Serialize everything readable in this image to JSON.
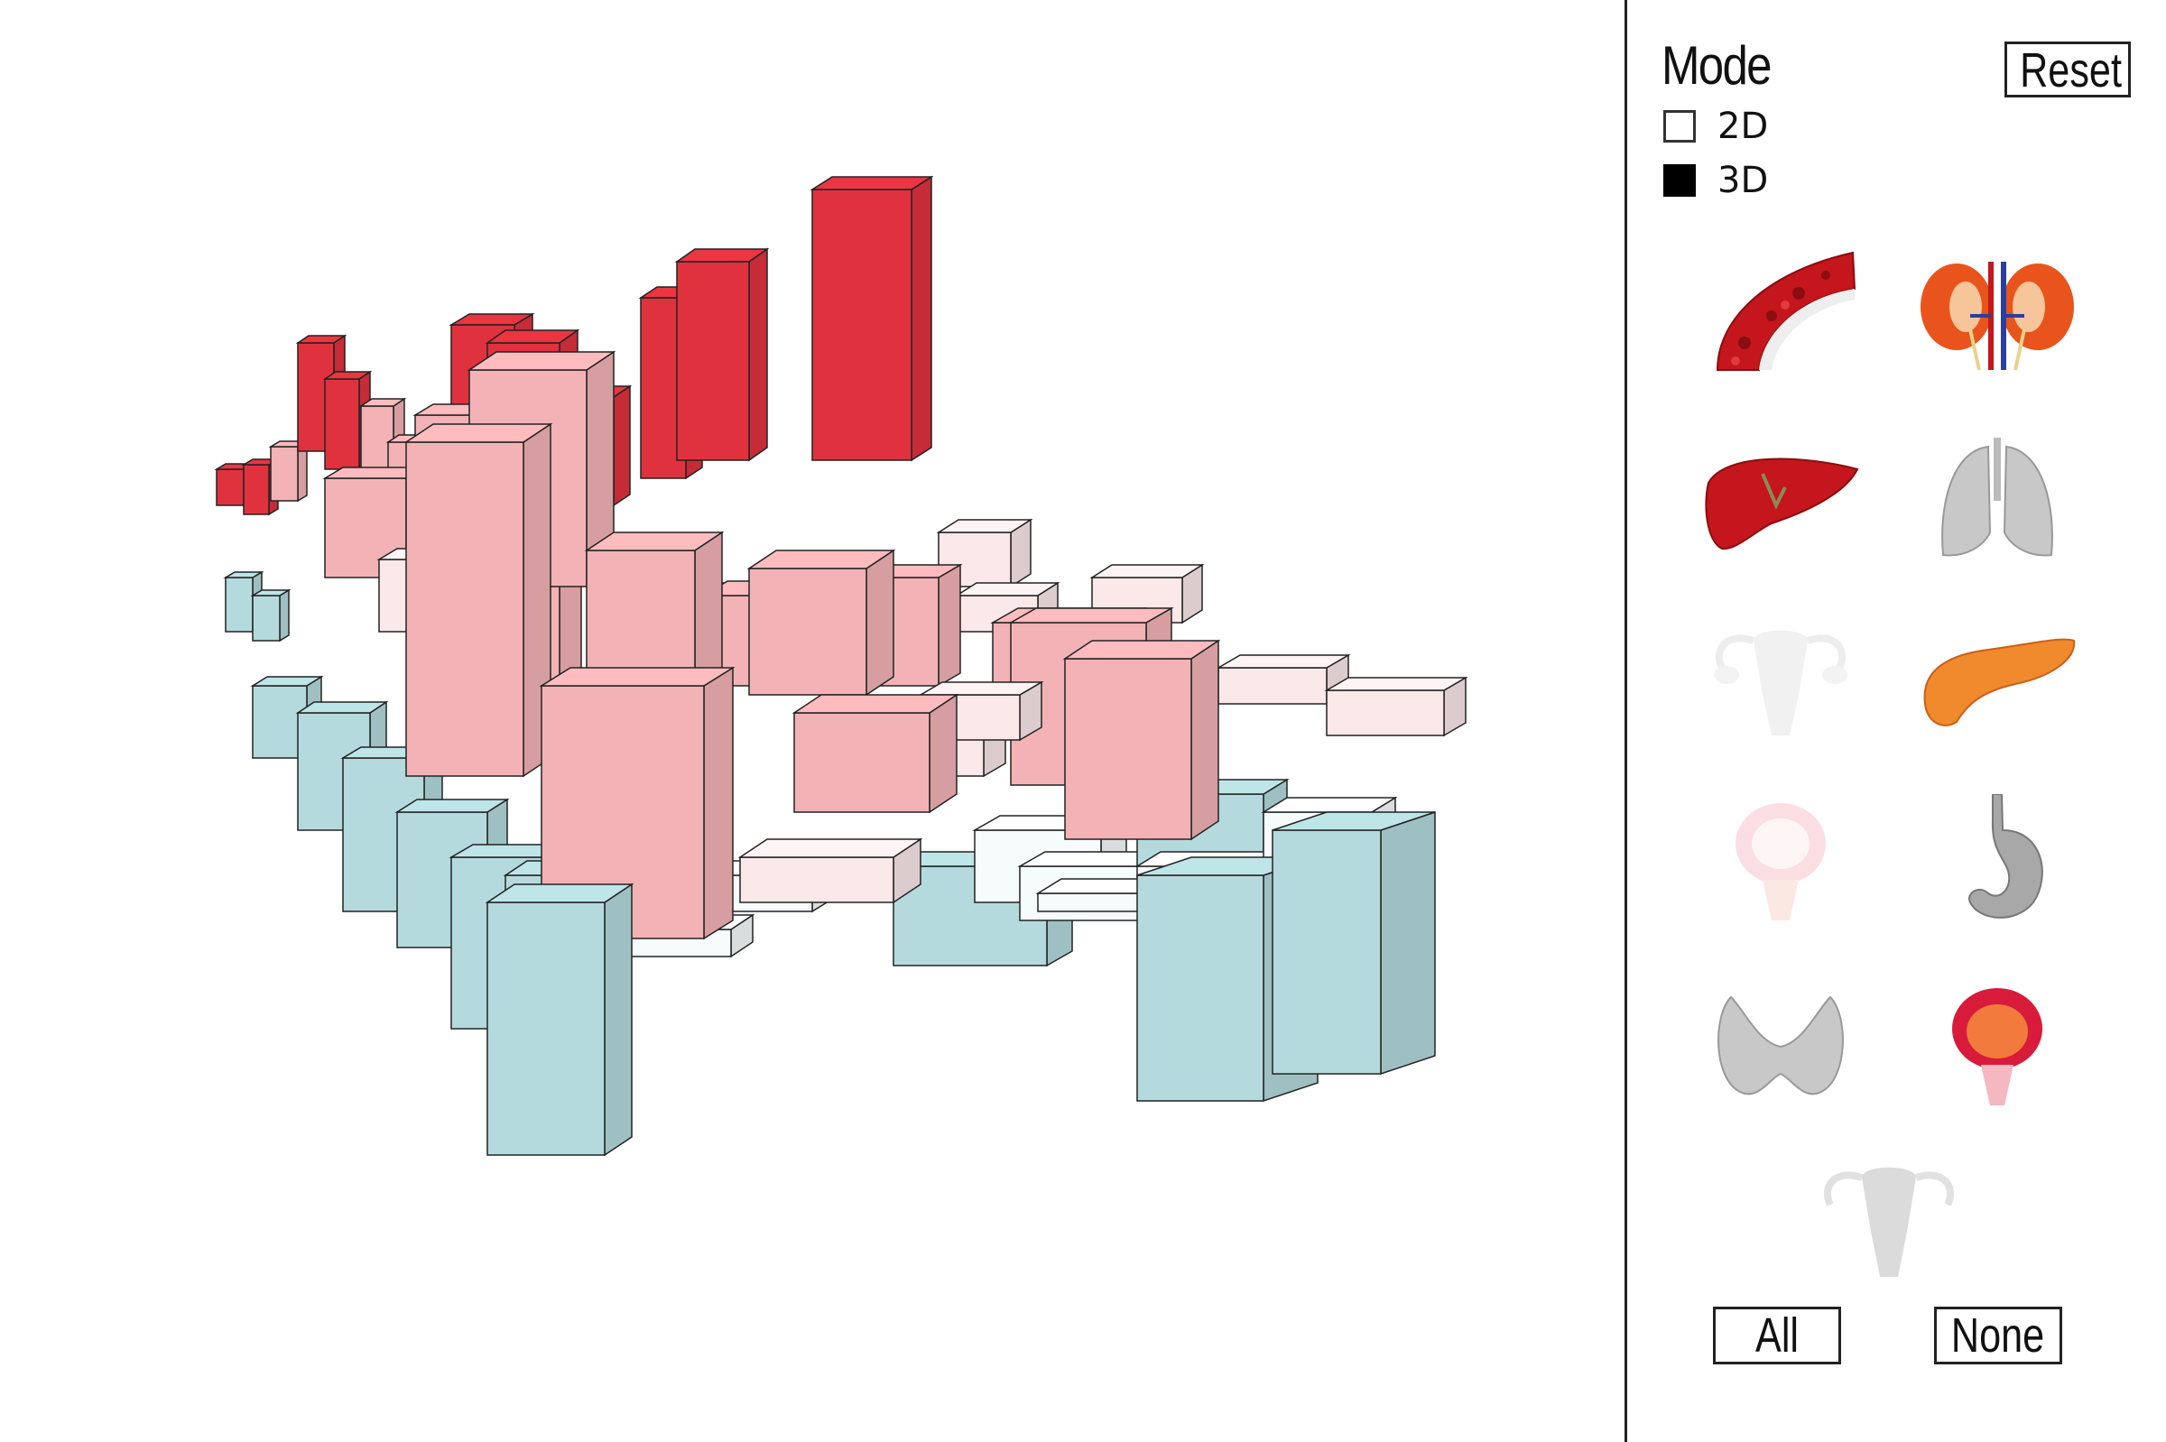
{
  "sidebar": {
    "mode_title": "Mode",
    "reset_label": "Reset",
    "modes": [
      {
        "label": "2D",
        "checked": false
      },
      {
        "label": "3D",
        "checked": true
      }
    ],
    "organs": [
      {
        "name": "blood",
        "icon": "blood-vessel-icon",
        "selected": true
      },
      {
        "name": "kidney",
        "icon": "kidney-icon",
        "selected": true
      },
      {
        "name": "liver",
        "icon": "liver-icon",
        "selected": true
      },
      {
        "name": "lung",
        "icon": "lung-icon",
        "selected": true
      },
      {
        "name": "ovary",
        "icon": "ovary-icon",
        "selected": false
      },
      {
        "name": "pancreas",
        "icon": "pancreas-icon",
        "selected": true
      },
      {
        "name": "bladder",
        "icon": "bladder-icon",
        "selected": false
      },
      {
        "name": "stomach",
        "icon": "stomach-icon",
        "selected": true
      },
      {
        "name": "thyroid",
        "icon": "thyroid-icon",
        "selected": true
      },
      {
        "name": "prostate",
        "icon": "prostate-icon",
        "selected": true
      },
      {
        "name": "uterus",
        "icon": "uterus-icon",
        "selected": false
      }
    ],
    "all_label": "All",
    "none_label": "None"
  },
  "colors": {
    "high": "#e0323e",
    "mid": "#f3b3b6",
    "low_pink": "#fbe8e9",
    "neutral": "#f6fbfb",
    "teal": "#b5dadd",
    "edge": "#222222"
  }
}
